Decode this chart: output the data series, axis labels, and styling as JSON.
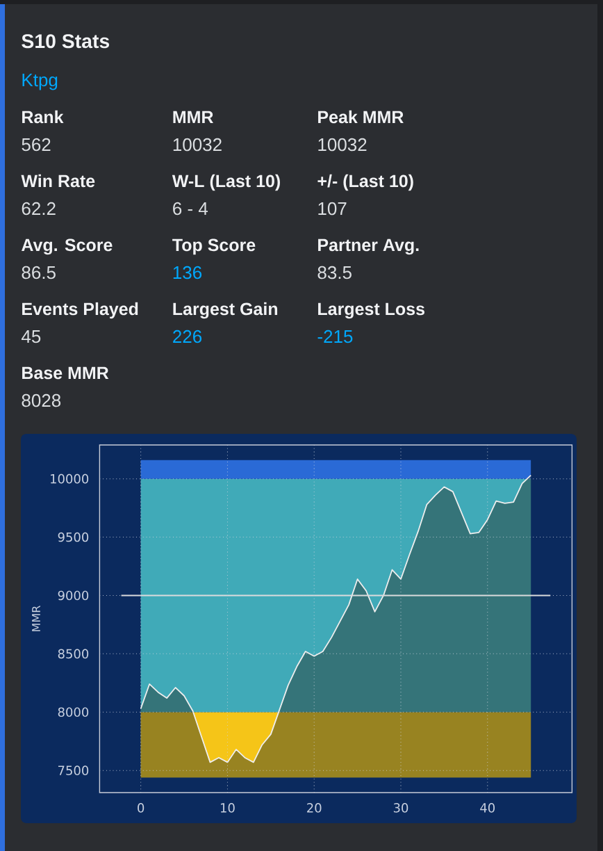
{
  "chart_data": [
    {
      "type": "other",
      "title": "S10 Stats",
      "subtitle": "Ktpg",
      "categories": [
        "Rank",
        "MMR",
        "Peak MMR",
        "Win Rate",
        "W-L (Last 10)",
        "+/- (Last 10)",
        "Avg. Score",
        "Top Score",
        "Partner Avg.",
        "Events Played",
        "Largest Gain",
        "Largest Loss",
        "Base MMR"
      ],
      "value_labels": [
        "562",
        "10032",
        "10032",
        "62.2",
        "6 - 4",
        "107",
        "86.5",
        "136",
        "83.5",
        "45",
        "226",
        "-215",
        "8028"
      ],
      "colors": [
        "#dbdee1",
        "#dbdee1",
        "#dbdee1",
        "#dbdee1",
        "#dbdee1",
        "#dbdee1",
        "#dbdee1",
        "#00a8fc",
        "#dbdee1",
        "#dbdee1",
        "#00a8fc",
        "#00a8fc",
        "#dbdee1"
      ]
    },
    {
      "type": "area",
      "ylabel": "MMR",
      "x": [
        0,
        1,
        2,
        3,
        4,
        5,
        6,
        7,
        8,
        9,
        10,
        11,
        12,
        13,
        14,
        15,
        16,
        17,
        18,
        19,
        20,
        21,
        22,
        23,
        24,
        25,
        26,
        27,
        28,
        29,
        30,
        31,
        32,
        33,
        34,
        35,
        36,
        37,
        38,
        39,
        40,
        41,
        42,
        43,
        44,
        45
      ],
      "series": [
        {
          "color": "#28342c",
          "values": [
            8030,
            8240,
            8170,
            8120,
            8210,
            8140,
            8010,
            7790,
            7570,
            7610,
            7570,
            7680,
            7610,
            7570,
            7720,
            7810,
            8020,
            8230,
            8390,
            8520,
            8480,
            8520,
            8640,
            8780,
            8920,
            9140,
            9040,
            8860,
            9000,
            9220,
            9140,
            9350,
            9550,
            9780,
            9860,
            9930,
            9890,
            9710,
            9530,
            9540,
            9650,
            9810,
            9790,
            9800,
            9960,
            10030
          ]
        }
      ],
      "xlim": [
        -4.75,
        49.75
      ],
      "ylim": [
        7310,
        10290
      ],
      "xticks": [
        0,
        10,
        20,
        30,
        40
      ],
      "yticks": [
        7500,
        8000,
        8500,
        9000,
        9500,
        10000
      ],
      "grid": true,
      "ref_lines": [
        {
          "axis": "y",
          "value": 9000,
          "color": "#dcdcdc"
        }
      ],
      "bands": [
        {
          "axis": "y",
          "from": 7440,
          "to": 8000,
          "color": "#f5c518"
        },
        {
          "axis": "y",
          "from": 8000,
          "to": 10000,
          "color": "#40aab8"
        },
        {
          "axis": "y",
          "from": 10000,
          "to": 10160,
          "color": "#2a6ad6"
        }
      ]
    }
  ]
}
